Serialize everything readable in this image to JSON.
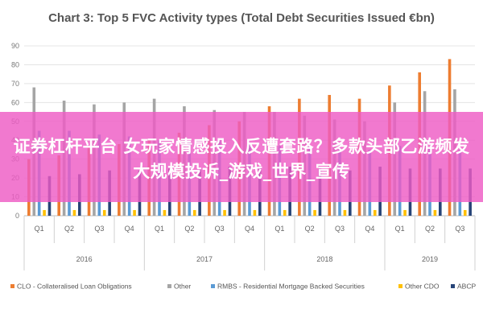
{
  "chart_data": {
    "type": "bar",
    "title": "Chart 3: Top 5 FVC Activity types (Total Debt Securities Issued €bn)",
    "xlabel": "",
    "ylabel": "",
    "ylim": [
      0,
      90
    ],
    "yticks": [
      0,
      10,
      20,
      30,
      40,
      50,
      60,
      70,
      80,
      90
    ],
    "grid": true,
    "legend_position": "bottom",
    "categories": [
      "Q1",
      "Q2",
      "Q3",
      "Q4",
      "Q1",
      "Q2",
      "Q3",
      "Q4",
      "Q1",
      "Q2",
      "Q3",
      "Q4",
      "Q1",
      "Q2",
      "Q3"
    ],
    "year_groups": [
      {
        "label": "2016",
        "count": 4
      },
      {
        "label": "2017",
        "count": 4
      },
      {
        "label": "2018",
        "count": 4
      },
      {
        "label": "2019",
        "count": 3
      }
    ],
    "series": [
      {
        "name": "CLO - Collateralised Loan Obligations",
        "color": "#ed7d31",
        "values": [
          30,
          32,
          36,
          38,
          40,
          44,
          48,
          50,
          58,
          62,
          64,
          62,
          69,
          76,
          83
        ]
      },
      {
        "name": "Other",
        "color": "#a5a5a5",
        "values": [
          68,
          61,
          59,
          60,
          62,
          58,
          56,
          55,
          55,
          53,
          51,
          50,
          60,
          66,
          67
        ]
      },
      {
        "name": "RMBS - Residential Mortgage Backed Securities",
        "color": "#5b9bd5",
        "values": [
          45,
          45,
          43,
          42,
          40,
          39,
          40,
          38,
          37,
          37,
          36,
          35,
          37,
          36,
          35
        ]
      },
      {
        "name": "Other CDO",
        "color": "#ffc000",
        "values": [
          3,
          3,
          3,
          3,
          3,
          3,
          3,
          3,
          3,
          3,
          3,
          3,
          3,
          3,
          3
        ]
      },
      {
        "name": "ABCP",
        "color": "#264478",
        "values": [
          21,
          22,
          24,
          24,
          25,
          25,
          26,
          26,
          26,
          25,
          24,
          26,
          25,
          25,
          25
        ]
      }
    ]
  },
  "banner": {
    "text": "证券杠杆平台 女玩家情感投入反遭套路？多款头部乙游频发大规模投诉_游戏_世界_宣传"
  }
}
